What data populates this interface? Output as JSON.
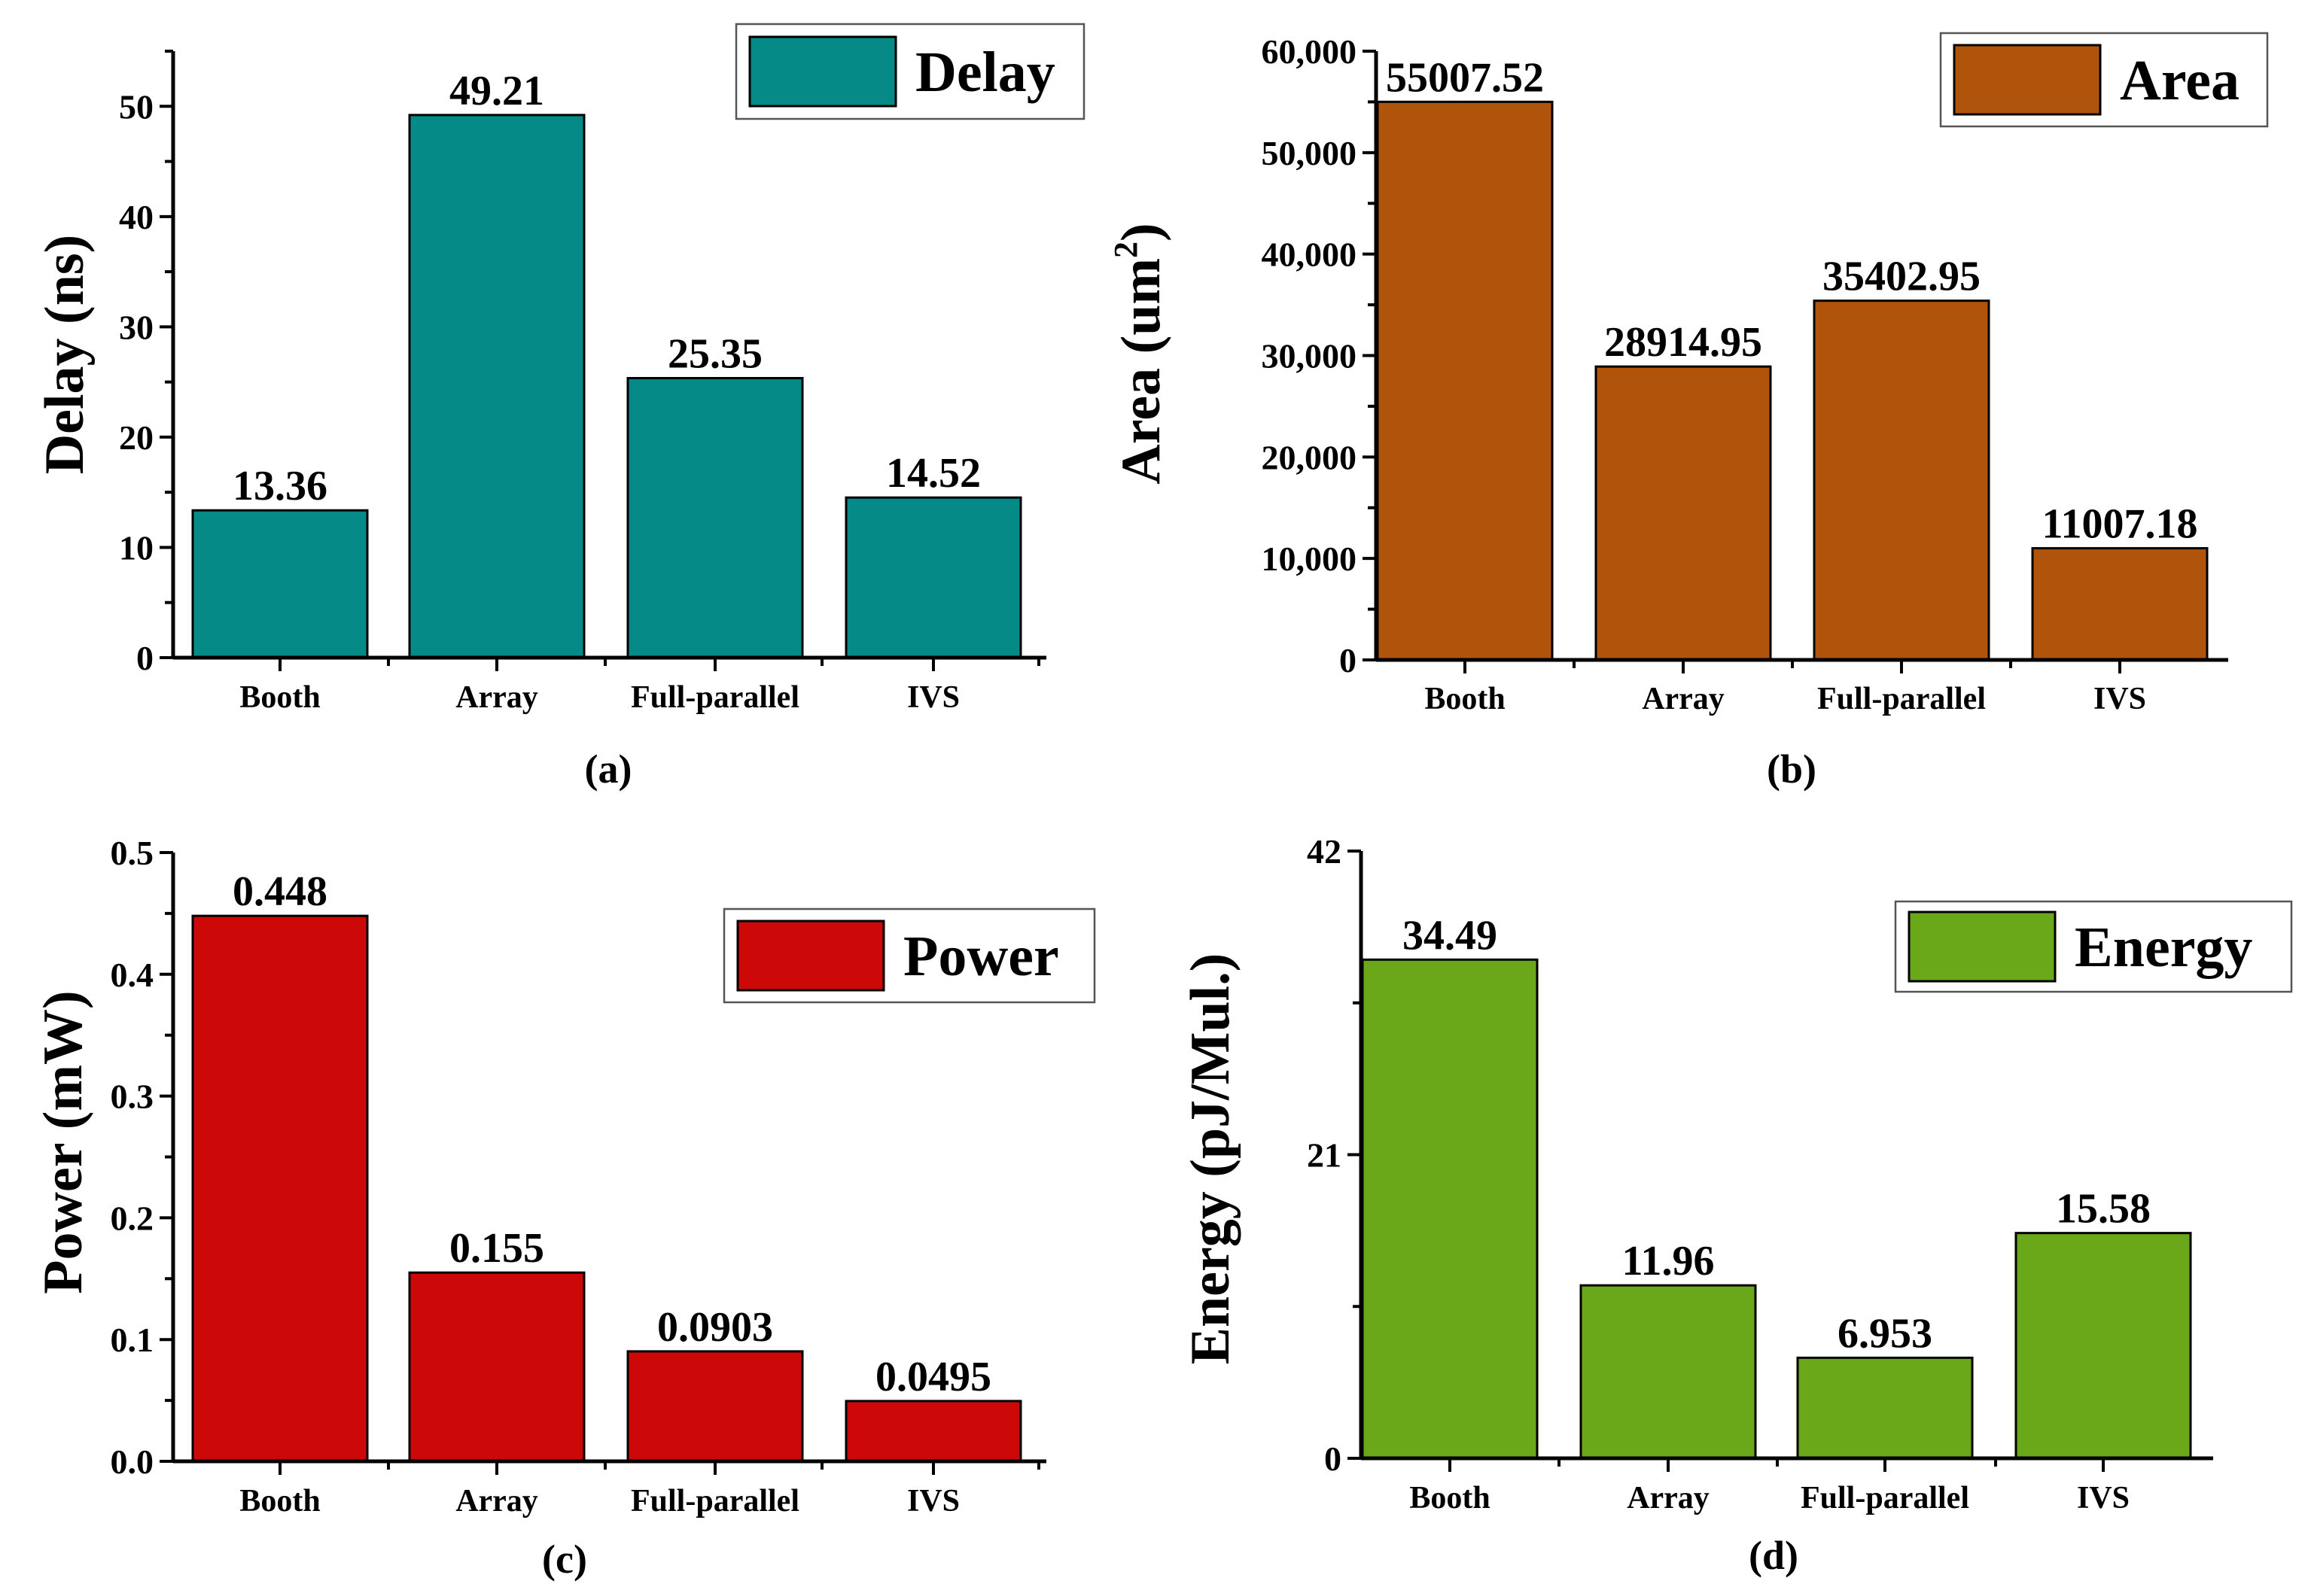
{
  "chart_data": [
    {
      "type": "bar",
      "panel_label": "(a)",
      "categories": [
        "Booth",
        "Array",
        "Full-parallel",
        "IVS"
      ],
      "values": [
        13.36,
        49.21,
        25.35,
        14.52
      ],
      "value_labels": [
        "13.36",
        "49.21",
        "25.35",
        "14.52"
      ],
      "ylabel": "Delay (ns)",
      "ylim": [
        0,
        55
      ],
      "yticks": [
        0,
        10,
        20,
        30,
        40,
        50
      ],
      "ytick_labels": [
        "0",
        "10",
        "20",
        "30",
        "40",
        "50"
      ],
      "legend": "Delay",
      "legend_position": "top-right",
      "color": "#058a88"
    },
    {
      "type": "bar",
      "panel_label": "(b)",
      "categories": [
        "Booth",
        "Array",
        "Full-parallel",
        "IVS"
      ],
      "values": [
        55007.52,
        28914.95,
        35402.95,
        11007.18
      ],
      "value_labels": [
        "55007.52",
        "28914.95",
        "35402.95",
        "11007.18"
      ],
      "ylabel": "Area (um",
      "ylabel_sup": "2",
      "ylabel_end": ")",
      "ylim": [
        0,
        60000
      ],
      "yticks": [
        0,
        10000,
        20000,
        30000,
        40000,
        50000,
        60000
      ],
      "ytick_labels": [
        "0",
        "10,000",
        "20,000",
        "30,000",
        "40,000",
        "50,000",
        "60,000"
      ],
      "legend": "Area",
      "legend_position": "top-right",
      "color": "#b0540c"
    },
    {
      "type": "bar",
      "panel_label": "(c)",
      "categories": [
        "Booth",
        "Array",
        "Full-parallel",
        "IVS"
      ],
      "values": [
        0.448,
        0.155,
        0.0903,
        0.0495
      ],
      "value_labels": [
        "0.448",
        "0.155",
        "0.0903",
        "0.0495"
      ],
      "ylabel": "Power (mW)",
      "ylim": [
        0,
        0.5
      ],
      "yticks": [
        0,
        0.1,
        0.2,
        0.3,
        0.4,
        0.5
      ],
      "ytick_labels": [
        "0.0",
        "0.1",
        "0.2",
        "0.3",
        "0.4",
        "0.5"
      ],
      "legend": "Power",
      "legend_position": "top-right",
      "color": "#cc0808"
    },
    {
      "type": "bar",
      "panel_label": "(d)",
      "categories": [
        "Booth",
        "Array",
        "Full-parallel",
        "IVS"
      ],
      "values": [
        34.49,
        11.96,
        6.953,
        15.58
      ],
      "value_labels": [
        "34.49",
        "11.96",
        "6.953",
        "15.58"
      ],
      "ylabel": "Energy (pJ/Mul.)",
      "ylim": [
        0,
        42
      ],
      "yticks": [
        0,
        21,
        42
      ],
      "ytick_labels": [
        "0",
        "21",
        "42"
      ],
      "legend": "Energy",
      "legend_position": "top-right",
      "color": "#6aa719"
    }
  ]
}
